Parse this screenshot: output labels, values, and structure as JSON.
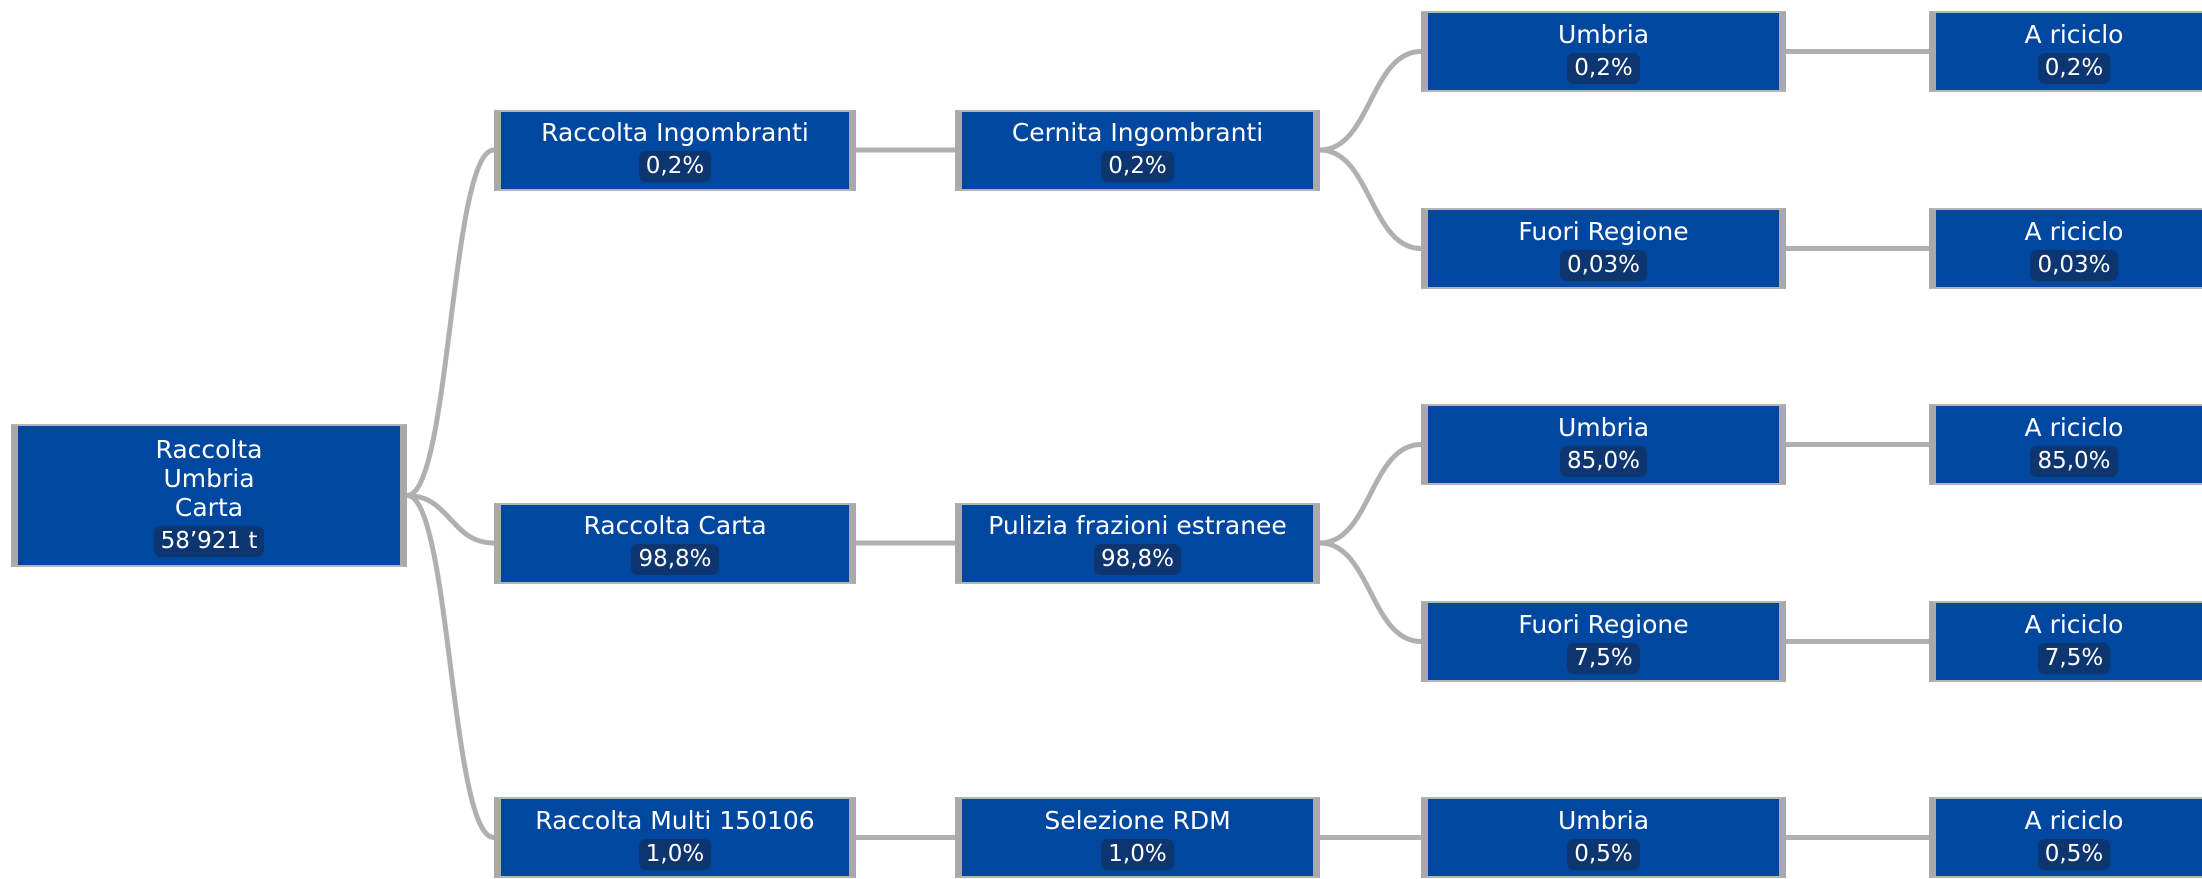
{
  "tree": {
    "label": "Raccolta Umbria Carta",
    "value": "58’921 t",
    "children": [
      {
        "label": "Raccolta Ingombranti",
        "value": "0,2%",
        "children": [
          {
            "label": "Cernita Ingombranti",
            "value": "0,2%",
            "children": [
              {
                "label": "Umbria",
                "value": "0,2%",
                "children": [
                  {
                    "label": "A riciclo",
                    "value": "0,2%"
                  }
                ]
              },
              {
                "label": "Fuori Regione",
                "value": "0,03%",
                "children": [
                  {
                    "label": "A riciclo",
                    "value": "0,03%"
                  }
                ]
              }
            ]
          }
        ]
      },
      {
        "label": "Raccolta Carta",
        "value": "98,8%",
        "children": [
          {
            "label": "Pulizia frazioni estranee",
            "value": "98,8%",
            "children": [
              {
                "label": "Umbria",
                "value": "85,0%",
                "children": [
                  {
                    "label": "A riciclo",
                    "value": "85,0%"
                  }
                ]
              },
              {
                "label": "Fuori Regione",
                "value": "7,5%",
                "children": [
                  {
                    "label": "A riciclo",
                    "value": "7,5%"
                  }
                ]
              }
            ]
          }
        ]
      },
      {
        "label": "Raccolta Multi 150106",
        "value": "1,0%",
        "children": [
          {
            "label": "Selezione RDM",
            "value": "1,0%",
            "children": [
              {
                "label": "Umbria",
                "value": "0,5%",
                "children": [
                  {
                    "label": "A riciclo",
                    "value": "0,5%"
                  }
                ]
              }
            ]
          }
        ]
      }
    ]
  }
}
